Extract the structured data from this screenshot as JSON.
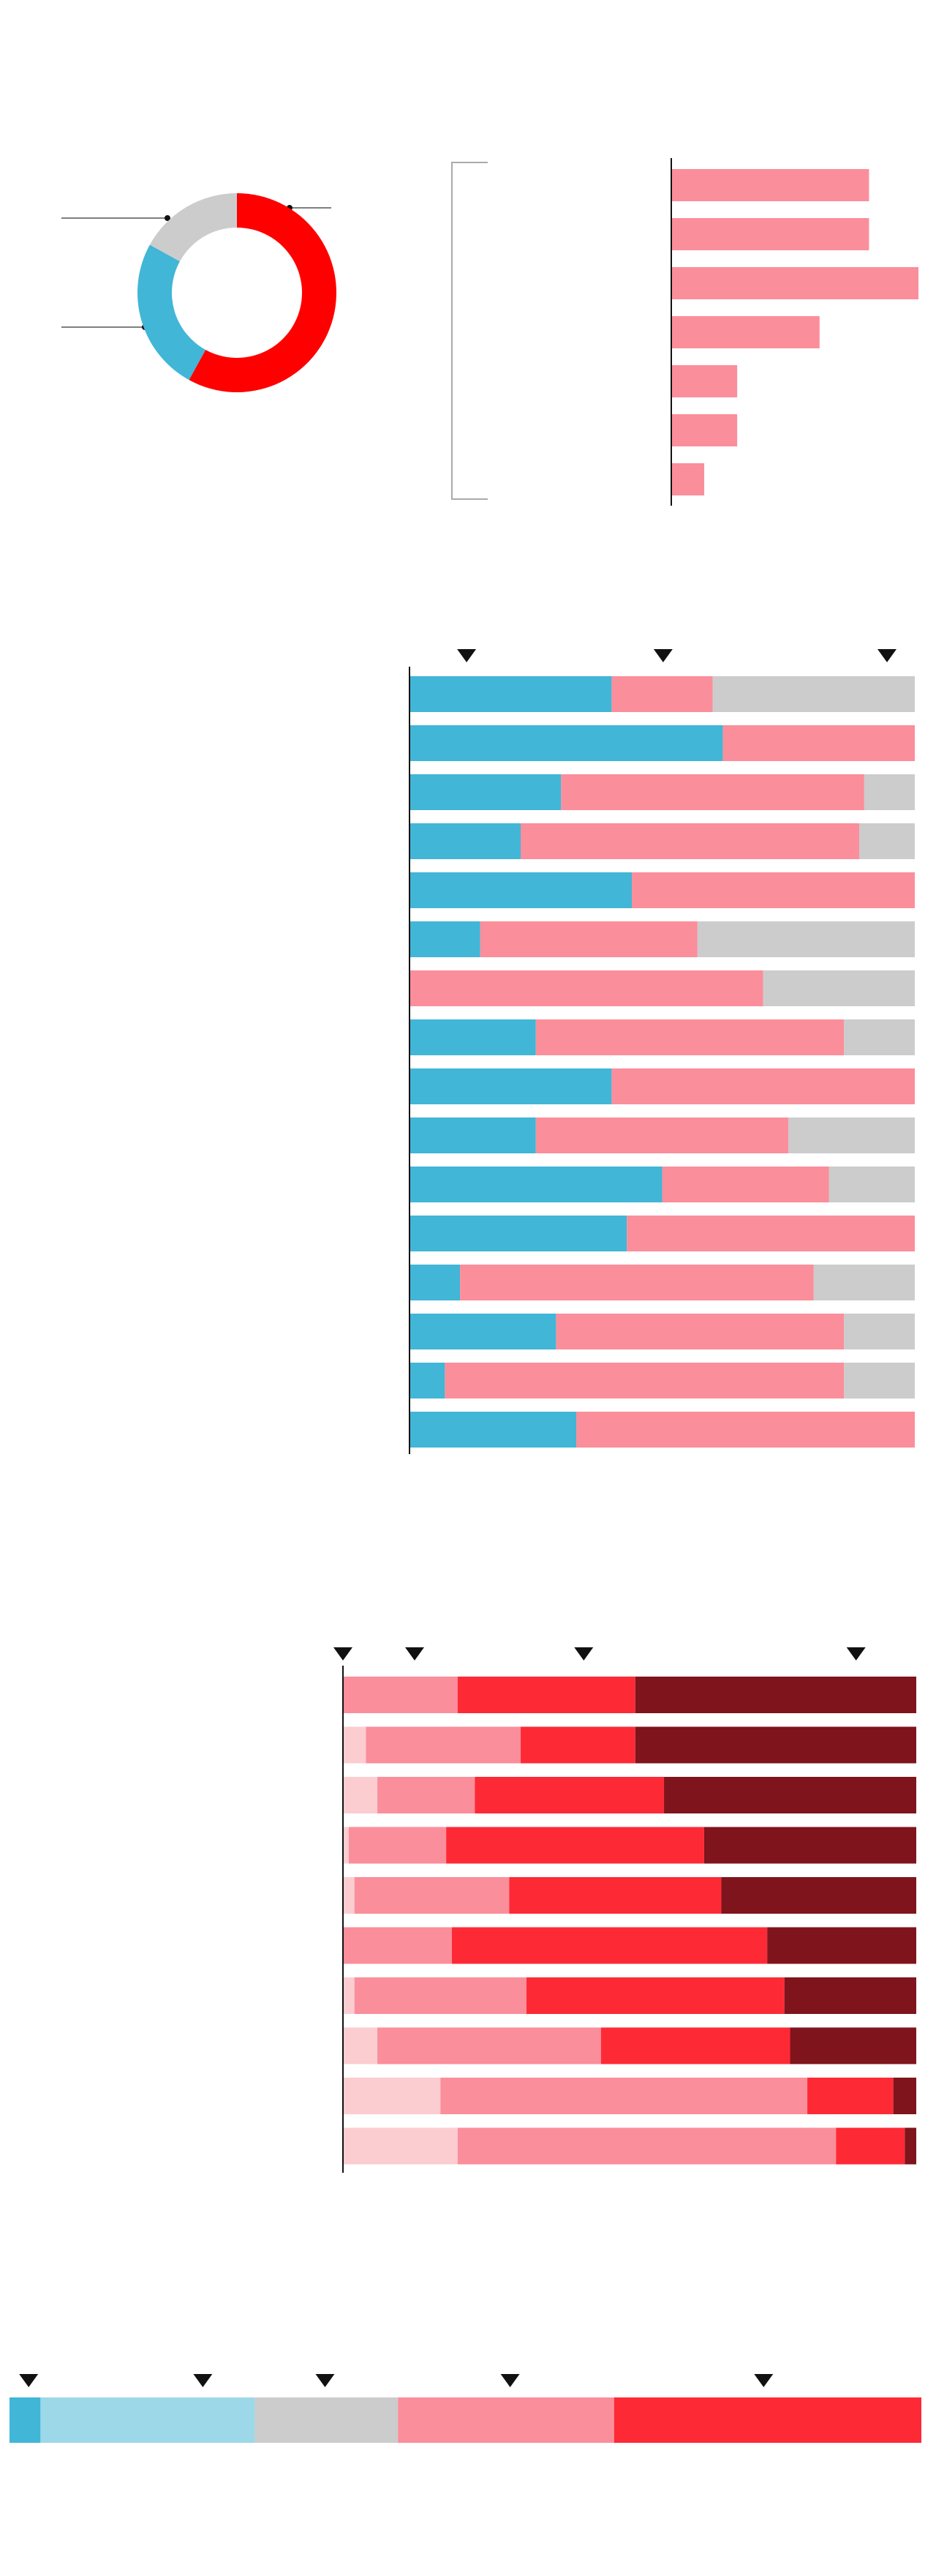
{
  "chart_data": [
    {
      "type": "donut",
      "values": [
        58,
        25,
        17
      ],
      "colors": [
        "#ff0000",
        "#41b6d6",
        "#cccccc"
      ]
    },
    {
      "type": "hbar",
      "values": [
        24,
        24,
        30,
        18,
        8,
        8,
        4
      ],
      "color": "#fb8e9b",
      "xlim": [
        0,
        30
      ]
    },
    {
      "type": "stacked-hbar",
      "xlim": [
        0,
        100
      ],
      "markers": [
        11.3,
        50.2,
        94.5
      ],
      "series": [
        {
          "color": "#41b6d6",
          "values": [
            40,
            62,
            30,
            22,
            44,
            14,
            0,
            25,
            40,
            25,
            50,
            43,
            10,
            29,
            7,
            33
          ]
        },
        {
          "color": "#fb8e9b",
          "values": [
            20,
            38,
            60,
            67,
            56,
            43,
            70,
            61,
            60,
            50,
            33,
            57,
            70,
            57,
            79,
            67
          ]
        },
        {
          "color": "#cccccc",
          "values": [
            40,
            0,
            10,
            11,
            0,
            43,
            30,
            14,
            0,
            25,
            17,
            0,
            20,
            14,
            14,
            0
          ]
        }
      ]
    },
    {
      "type": "stacked-hbar",
      "xlim": [
        0,
        100
      ],
      "markers": [
        0,
        12.5,
        42,
        89.5
      ],
      "series": [
        {
          "color": "#fbcdd1",
          "values": [
            0,
            4,
            6,
            1,
            2,
            0,
            2,
            6,
            17,
            20
          ]
        },
        {
          "color": "#fb8e9b",
          "values": [
            20,
            27,
            17,
            17,
            27,
            19,
            30,
            39,
            64,
            66
          ]
        },
        {
          "color": "#fd2a36",
          "values": [
            31,
            20,
            33,
            45,
            37,
            55,
            45,
            33,
            15,
            12
          ]
        },
        {
          "color": "#7f141c",
          "values": [
            49,
            49,
            44,
            37,
            34,
            26,
            23,
            22,
            4,
            2
          ]
        }
      ]
    },
    {
      "type": "stacked-hbar",
      "xlim": [
        0,
        100
      ],
      "markers": [
        2.1,
        21.2,
        34.6,
        54.9,
        82.7
      ],
      "series": [
        {
          "color": "#41b6d6",
          "values": [
            3.4
          ]
        },
        {
          "color": "#9dd8e9",
          "values": [
            23.5
          ]
        },
        {
          "color": "#cccccc",
          "values": [
            15.7
          ]
        },
        {
          "color": "#fb8e9b",
          "values": [
            23.7
          ]
        },
        {
          "color": "#fd2a36",
          "values": [
            33.7
          ]
        }
      ]
    }
  ]
}
